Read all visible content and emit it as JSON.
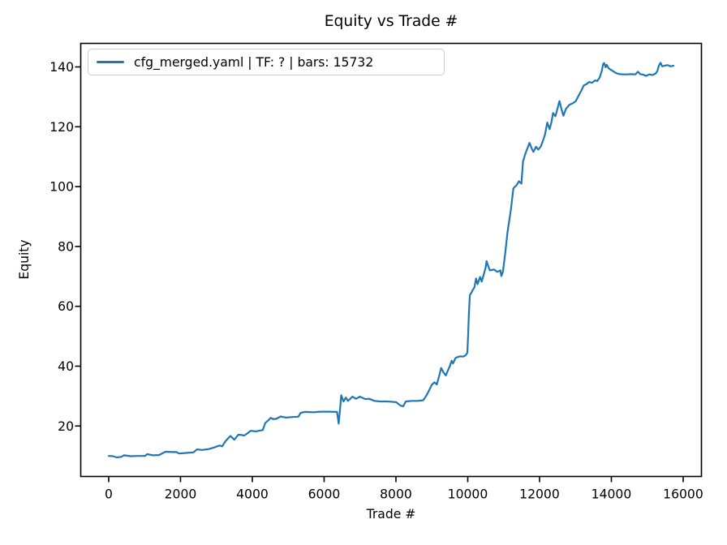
{
  "chart": {
    "title": "Equity vs Trade #",
    "xlabel": "Trade #",
    "ylabel": "Equity",
    "legend_label": "cfg_merged.yaml | TF: ? | bars: 15732",
    "line_color": "#1f77b4",
    "axis_color": "#000000",
    "legend_border_color": "#cccccc"
  },
  "chart_data": {
    "type": "line",
    "title": "Equity vs Trade #",
    "xlabel": "Trade #",
    "ylabel": "Equity",
    "grid": false,
    "legend_position": "upper left",
    "legend_entries": [
      "cfg_merged.yaml | TF: ? | bars: 15732"
    ],
    "xlim": [
      -790,
      16520
    ],
    "ylim": [
      3,
      148
    ],
    "xticks": [
      0,
      2000,
      4000,
      6000,
      8000,
      10000,
      12000,
      14000,
      16000
    ],
    "yticks": [
      20,
      40,
      60,
      80,
      100,
      120,
      140
    ],
    "series": [
      {
        "name": "cfg_merged.yaml | TF: ? | bars: 15732",
        "color": "#1f77b4",
        "points": [
          [
            0,
            10.0
          ],
          [
            120,
            9.9
          ],
          [
            225,
            9.5
          ],
          [
            350,
            9.7
          ],
          [
            430,
            10.2
          ],
          [
            610,
            9.9
          ],
          [
            800,
            10.0
          ],
          [
            1015,
            10.0
          ],
          [
            1070,
            10.6
          ],
          [
            1240,
            10.2
          ],
          [
            1400,
            10.3
          ],
          [
            1580,
            11.4
          ],
          [
            1750,
            11.3
          ],
          [
            1890,
            11.3
          ],
          [
            1960,
            10.8
          ],
          [
            2150,
            11.0
          ],
          [
            2365,
            11.2
          ],
          [
            2460,
            12.2
          ],
          [
            2600,
            12.0
          ],
          [
            2790,
            12.3
          ],
          [
            2930,
            12.8
          ],
          [
            3090,
            13.5
          ],
          [
            3160,
            13.2
          ],
          [
            3250,
            14.9
          ],
          [
            3320,
            15.8
          ],
          [
            3390,
            16.7
          ],
          [
            3500,
            15.4
          ],
          [
            3610,
            17.1
          ],
          [
            3700,
            17.0
          ],
          [
            3770,
            16.8
          ],
          [
            3870,
            17.6
          ],
          [
            3950,
            18.4
          ],
          [
            4100,
            18.2
          ],
          [
            4220,
            18.5
          ],
          [
            4290,
            18.6
          ],
          [
            4360,
            21.0
          ],
          [
            4440,
            21.8
          ],
          [
            4510,
            22.7
          ],
          [
            4590,
            22.3
          ],
          [
            4670,
            22.4
          ],
          [
            4790,
            23.2
          ],
          [
            4940,
            22.8
          ],
          [
            5120,
            23.0
          ],
          [
            5280,
            23.1
          ],
          [
            5350,
            24.4
          ],
          [
            5460,
            24.7
          ],
          [
            5690,
            24.6
          ],
          [
            5910,
            24.8
          ],
          [
            6130,
            24.8
          ],
          [
            6360,
            24.7
          ],
          [
            6405,
            20.8
          ],
          [
            6450,
            26.5
          ],
          [
            6475,
            30.3
          ],
          [
            6540,
            28.2
          ],
          [
            6605,
            29.5
          ],
          [
            6665,
            28.4
          ],
          [
            6790,
            29.8
          ],
          [
            6885,
            29.1
          ],
          [
            6995,
            29.8
          ],
          [
            7150,
            29.0
          ],
          [
            7255,
            29.1
          ],
          [
            7405,
            28.4
          ],
          [
            7555,
            28.2
          ],
          [
            7755,
            28.2
          ],
          [
            8005,
            28.0
          ],
          [
            8130,
            26.8
          ],
          [
            8205,
            26.6
          ],
          [
            8275,
            28.2
          ],
          [
            8455,
            28.4
          ],
          [
            8605,
            28.4
          ],
          [
            8760,
            28.6
          ],
          [
            8840,
            30.0
          ],
          [
            8920,
            31.8
          ],
          [
            9000,
            33.8
          ],
          [
            9070,
            34.6
          ],
          [
            9140,
            33.9
          ],
          [
            9210,
            37.0
          ],
          [
            9260,
            39.4
          ],
          [
            9330,
            37.8
          ],
          [
            9390,
            36.9
          ],
          [
            9450,
            38.6
          ],
          [
            9500,
            40.0
          ],
          [
            9550,
            41.8
          ],
          [
            9590,
            40.9
          ],
          [
            9660,
            42.7
          ],
          [
            9730,
            43.1
          ],
          [
            9800,
            43.3
          ],
          [
            9870,
            43.2
          ],
          [
            9940,
            43.6
          ],
          [
            9990,
            44.5
          ],
          [
            10010,
            50.0
          ],
          [
            10030,
            57.0
          ],
          [
            10060,
            63.8
          ],
          [
            10100,
            64.5
          ],
          [
            10140,
            65.5
          ],
          [
            10185,
            66.3
          ],
          [
            10230,
            69.3
          ],
          [
            10275,
            67.4
          ],
          [
            10345,
            69.8
          ],
          [
            10390,
            68.3
          ],
          [
            10455,
            71.0
          ],
          [
            10500,
            73.0
          ],
          [
            10525,
            75.1
          ],
          [
            10570,
            73.5
          ],
          [
            10615,
            72.0
          ],
          [
            10730,
            72.3
          ],
          [
            10820,
            71.5
          ],
          [
            10910,
            72.0
          ],
          [
            10935,
            70.1
          ],
          [
            10980,
            71.5
          ],
          [
            11045,
            77.8
          ],
          [
            11110,
            85.0
          ],
          [
            11200,
            92.2
          ],
          [
            11270,
            99.4
          ],
          [
            11360,
            100.5
          ],
          [
            11425,
            101.8
          ],
          [
            11495,
            101.0
          ],
          [
            11540,
            108.4
          ],
          [
            11605,
            111.0
          ],
          [
            11720,
            114.6
          ],
          [
            11790,
            112.5
          ],
          [
            11830,
            111.6
          ],
          [
            11900,
            113.3
          ],
          [
            11965,
            112.4
          ],
          [
            12035,
            113.4
          ],
          [
            12100,
            115.5
          ],
          [
            12150,
            117.3
          ],
          [
            12215,
            121.4
          ],
          [
            12280,
            119.2
          ],
          [
            12330,
            121.5
          ],
          [
            12375,
            124.6
          ],
          [
            12440,
            123.5
          ],
          [
            12510,
            126.5
          ],
          [
            12555,
            128.6
          ],
          [
            12620,
            125.5
          ],
          [
            12665,
            123.7
          ],
          [
            12735,
            126.0
          ],
          [
            12825,
            127.3
          ],
          [
            12915,
            127.8
          ],
          [
            13005,
            128.5
          ],
          [
            13070,
            130.0
          ],
          [
            13160,
            132.0
          ],
          [
            13230,
            133.8
          ],
          [
            13300,
            134.2
          ],
          [
            13385,
            135.0
          ],
          [
            13455,
            134.7
          ],
          [
            13545,
            135.5
          ],
          [
            13610,
            135.3
          ],
          [
            13680,
            136.6
          ],
          [
            13730,
            138.5
          ],
          [
            13770,
            140.9
          ],
          [
            13800,
            141.3
          ],
          [
            13840,
            139.9
          ],
          [
            13870,
            140.7
          ],
          [
            13920,
            139.6
          ],
          [
            13990,
            139.0
          ],
          [
            14060,
            138.5
          ],
          [
            14140,
            137.9
          ],
          [
            14230,
            137.6
          ],
          [
            14330,
            137.5
          ],
          [
            14440,
            137.5
          ],
          [
            14550,
            137.6
          ],
          [
            14670,
            137.5
          ],
          [
            14740,
            138.4
          ],
          [
            14805,
            137.6
          ],
          [
            14895,
            137.4
          ],
          [
            14965,
            137.0
          ],
          [
            15055,
            137.5
          ],
          [
            15145,
            137.3
          ],
          [
            15235,
            137.8
          ],
          [
            15280,
            138.6
          ],
          [
            15325,
            140.5
          ],
          [
            15370,
            141.4
          ],
          [
            15415,
            140.2
          ],
          [
            15480,
            140.4
          ],
          [
            15570,
            140.6
          ],
          [
            15640,
            140.2
          ],
          [
            15732,
            140.4
          ]
        ]
      }
    ]
  }
}
